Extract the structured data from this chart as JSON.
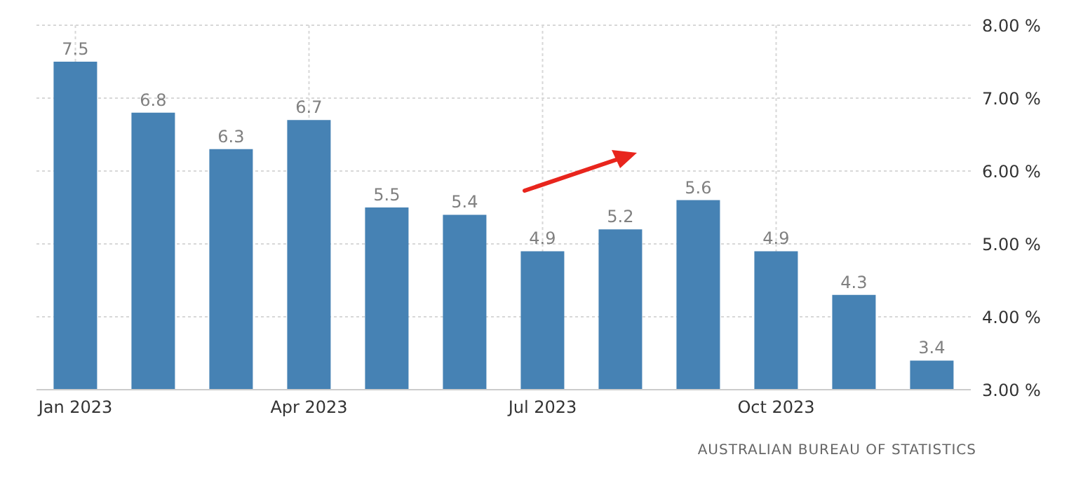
{
  "chart_data": {
    "type": "bar",
    "categories": [
      "Jan 2023",
      null,
      null,
      "Apr 2023",
      null,
      null,
      "Jul 2023",
      null,
      null,
      "Oct 2023",
      null,
      null
    ],
    "values": [
      7.5,
      6.8,
      6.3,
      6.7,
      5.5,
      5.4,
      4.9,
      5.2,
      5.6,
      4.9,
      4.3,
      3.4
    ],
    "color": "#4682b4",
    "ylim": [
      3,
      8
    ],
    "yticks": [
      {
        "value": 3,
        "label": "3.00 %"
      },
      {
        "value": 4,
        "label": "4.00 %"
      },
      {
        "value": 5,
        "label": "5.00 %"
      },
      {
        "value": 6,
        "label": "6.00 %"
      },
      {
        "value": 7,
        "label": "7.00 %"
      },
      {
        "value": 8,
        "label": "8.00 %"
      }
    ],
    "grid": true,
    "data_labels": true,
    "annotations": [
      "AUSTRALIAN BUREAU OF STATISTICS"
    ]
  }
}
